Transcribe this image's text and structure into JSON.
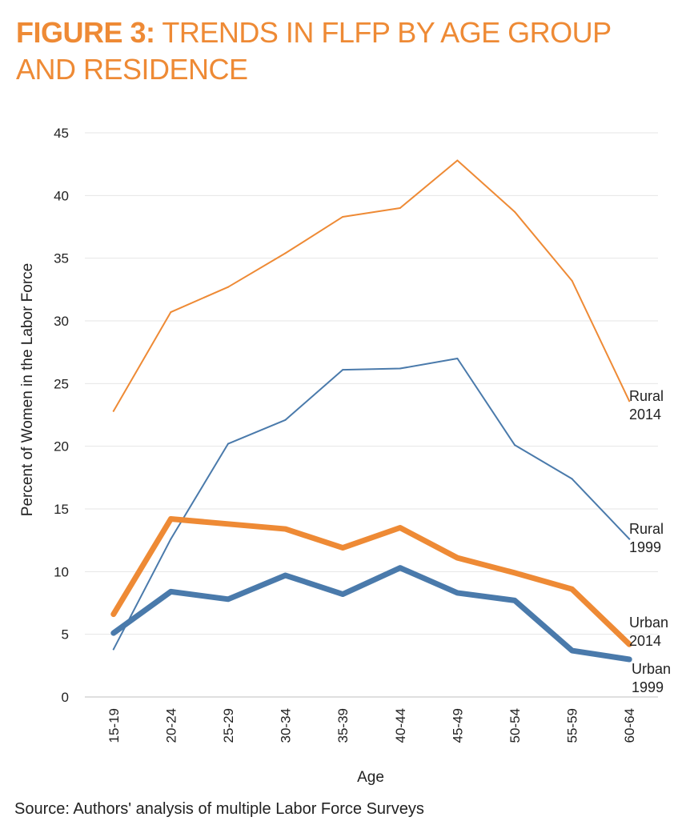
{
  "figure": {
    "title_lead": "FIGURE 3:",
    "title_rest": " TRENDS IN FLFP BY AGE GROUP AND RESIDENCE"
  },
  "source": "Source: Authors' analysis of multiple Labor Force Surveys",
  "chart_data": {
    "type": "line",
    "title": "",
    "xlabel": "Age",
    "ylabel": "Percent of Women in the Labor Force",
    "ylim": [
      0,
      45
    ],
    "yticks": [
      0,
      5,
      10,
      15,
      20,
      25,
      30,
      35,
      40,
      45
    ],
    "grid": true,
    "legend": "direct labels at line ends (right)",
    "categories": [
      "15-19",
      "20-24",
      "25-29",
      "30-34",
      "35-39",
      "40-44",
      "45-49",
      "50-54",
      "55-59",
      "60-64"
    ],
    "series": [
      {
        "name": "Rural 2014",
        "label_lines": [
          "Rural",
          "2014"
        ],
        "color": "#ee8a35",
        "width": "thin",
        "values": [
          22.8,
          30.7,
          32.7,
          35.4,
          38.3,
          39.0,
          42.8,
          38.7,
          33.2,
          23.6
        ]
      },
      {
        "name": "Rural 1999",
        "label_lines": [
          "Rural",
          "1999"
        ],
        "color": "#4a7aab",
        "width": "thin",
        "values": [
          3.8,
          12.6,
          20.2,
          22.1,
          26.1,
          26.2,
          27.0,
          20.1,
          17.4,
          12.6
        ]
      },
      {
        "name": "Urban 2014",
        "label_lines": [
          "Urban",
          "2014"
        ],
        "color": "#ee8a35",
        "width": "thick",
        "values": [
          6.6,
          14.2,
          13.8,
          13.4,
          11.9,
          13.5,
          11.1,
          9.9,
          8.6,
          4.2
        ]
      },
      {
        "name": "Urban 1999",
        "label_lines": [
          "Urban",
          "1999"
        ],
        "color": "#4a7aab",
        "width": "thick",
        "values": [
          5.1,
          8.4,
          7.8,
          9.7,
          8.2,
          10.3,
          8.3,
          7.7,
          3.7,
          3.0
        ]
      }
    ]
  }
}
